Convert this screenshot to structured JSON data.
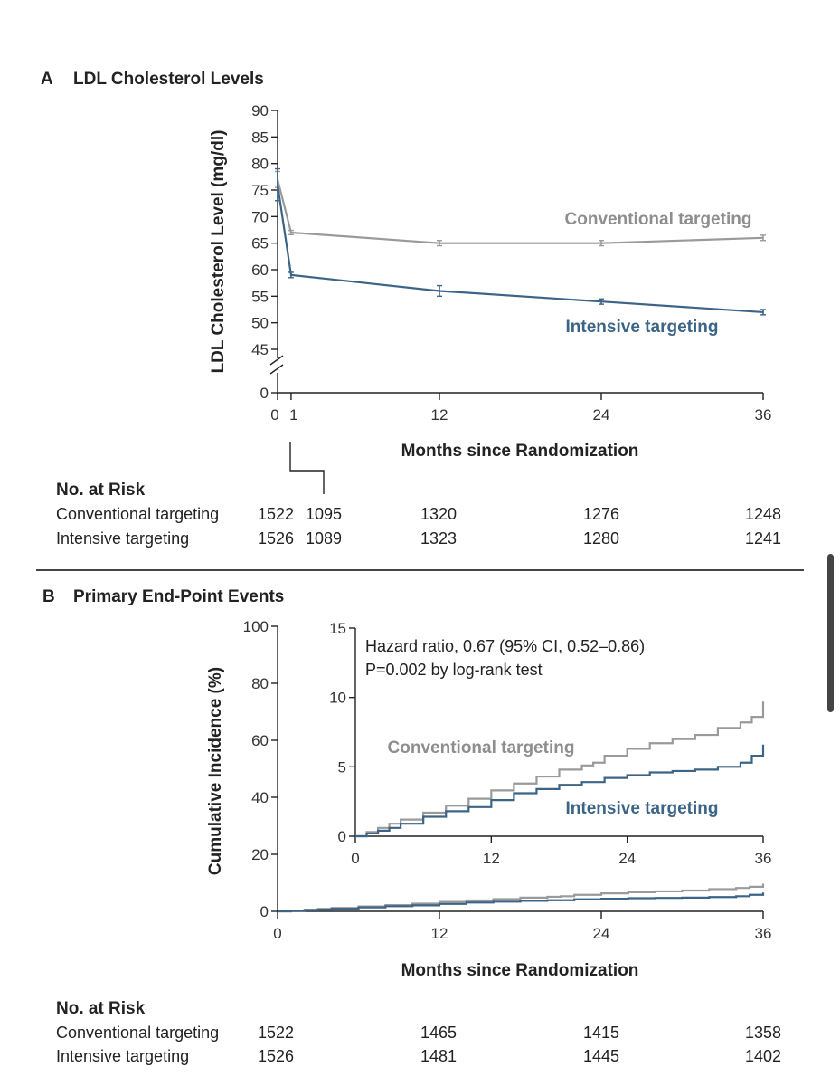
{
  "panel_a": {
    "letter": "A",
    "title": "LDL Cholesterol Levels",
    "ylabel": "LDL Cholesterol Level (mg/dl)",
    "xlabel": "Months since Randomization",
    "label_conventional": "Conventional targeting",
    "label_intensive": "Intensive targeting"
  },
  "risk_a": {
    "heading": "No. at Risk",
    "rows": [
      {
        "label": "Conventional targeting",
        "values": [
          "1522",
          "1095",
          "1320",
          "1276",
          "1248"
        ]
      },
      {
        "label": "Intensive targeting",
        "values": [
          "1526",
          "1089",
          "1323",
          "1280",
          "1241"
        ]
      }
    ]
  },
  "panel_b": {
    "letter": "B",
    "title": "Primary End-Point Events",
    "ylabel": "Cumulative Incidence (%)",
    "xlabel": "Months since Randomization",
    "hazard_line1": "Hazard ratio, 0.67 (95% CI, 0.52–0.86)",
    "hazard_line2": "P=0.002 by log-rank test",
    "label_conventional": "Conventional targeting",
    "label_intensive": "Intensive targeting"
  },
  "risk_b": {
    "heading": "No. at Risk",
    "rows": [
      {
        "label": "Conventional targeting",
        "values": [
          "1522",
          "1465",
          "1415",
          "1358"
        ]
      },
      {
        "label": "Intensive targeting",
        "values": [
          "1526",
          "1481",
          "1445",
          "1402"
        ]
      }
    ]
  },
  "colors": {
    "conventional": "#9a9a9a",
    "intensive": "#3b6486",
    "axis": "#222222"
  },
  "chart_data": [
    {
      "type": "line",
      "title": "LDL Cholesterol Levels",
      "xlabel": "Months since Randomization",
      "ylabel": "LDL Cholesterol Level (mg/dl)",
      "xlim": [
        0,
        36
      ],
      "ylim": [
        45,
        90
      ],
      "axis_break": true,
      "x_ticks": [
        0,
        1,
        12,
        24,
        36
      ],
      "x_tick_labels": [
        "0",
        "1",
        "12",
        "24",
        "36"
      ],
      "y_ticks": [
        0,
        45,
        50,
        55,
        60,
        65,
        70,
        75,
        80,
        85,
        90
      ],
      "y_tick_labels": [
        "0",
        "45",
        "50",
        "55",
        "60",
        "65",
        "70",
        "75",
        "80",
        "85",
        "90"
      ],
      "series": [
        {
          "name": "Conventional targeting",
          "x": [
            0,
            1,
            12,
            24,
            36
          ],
          "values": [
            77,
            67,
            65,
            65,
            66
          ],
          "err": [
            1.5,
            0.4,
            0.5,
            0.5,
            0.5
          ]
        },
        {
          "name": "Intensive targeting",
          "x": [
            0,
            1,
            12,
            24,
            36
          ],
          "values": [
            76,
            59,
            56,
            54,
            52
          ],
          "err": [
            3,
            0.5,
            1,
            0.5,
            0.5
          ]
        }
      ]
    },
    {
      "type": "line",
      "title": "Primary End-Point Events",
      "xlabel": "Months since Randomization",
      "ylabel": "Cumulative Incidence (%)",
      "xlim": [
        0,
        36
      ],
      "ylim": [
        0,
        100
      ],
      "x_ticks": [
        0,
        12,
        24,
        36
      ],
      "x_tick_labels": [
        "0",
        "12",
        "24",
        "36"
      ],
      "y_ticks": [
        0,
        20,
        40,
        60,
        80,
        100
      ],
      "y_tick_labels": [
        "0",
        "20",
        "40",
        "60",
        "80",
        "100"
      ],
      "series": [
        {
          "name": "Conventional targeting",
          "x": [
            0,
            1,
            2,
            3,
            4,
            6,
            8,
            10,
            12,
            14,
            16,
            18,
            20,
            21,
            22,
            24,
            26,
            28,
            30,
            32,
            34,
            35,
            36
          ],
          "values": [
            0,
            0.3,
            0.6,
            0.9,
            1.2,
            1.7,
            2.2,
            2.7,
            3.3,
            3.8,
            4.3,
            4.8,
            5.1,
            5.3,
            5.8,
            6.3,
            6.7,
            7.0,
            7.3,
            7.8,
            8.2,
            8.6,
            9.7
          ]
        },
        {
          "name": "Intensive targeting",
          "x": [
            0,
            1,
            2,
            3,
            4,
            6,
            8,
            10,
            12,
            14,
            16,
            18,
            20,
            22,
            24,
            26,
            28,
            30,
            32,
            34,
            35,
            36
          ],
          "values": [
            0,
            0.2,
            0.4,
            0.6,
            0.9,
            1.4,
            1.8,
            2.1,
            2.6,
            3.1,
            3.4,
            3.7,
            3.9,
            4.2,
            4.4,
            4.6,
            4.7,
            4.8,
            5.0,
            5.3,
            5.8,
            6.6
          ]
        }
      ]
    },
    {
      "type": "line",
      "title": "Primary End-Point Events (inset)",
      "xlim": [
        0,
        36
      ],
      "ylim": [
        0,
        15
      ],
      "x_ticks": [
        0,
        12,
        24,
        36
      ],
      "x_tick_labels": [
        "0",
        "12",
        "24",
        "36"
      ],
      "y_ticks": [
        0,
        5,
        10,
        15
      ],
      "y_tick_labels": [
        "0",
        "5",
        "10",
        "15"
      ],
      "series": [
        {
          "name": "Conventional targeting",
          "x": [
            0,
            1,
            2,
            3,
            4,
            6,
            8,
            10,
            12,
            14,
            16,
            18,
            20,
            21,
            22,
            24,
            26,
            28,
            30,
            32,
            34,
            35,
            36
          ],
          "values": [
            0,
            0.3,
            0.6,
            0.9,
            1.2,
            1.7,
            2.2,
            2.7,
            3.3,
            3.8,
            4.3,
            4.8,
            5.1,
            5.3,
            5.8,
            6.3,
            6.7,
            7.0,
            7.3,
            7.8,
            8.2,
            8.6,
            9.7
          ]
        },
        {
          "name": "Intensive targeting",
          "x": [
            0,
            1,
            2,
            3,
            4,
            6,
            8,
            10,
            12,
            14,
            16,
            18,
            20,
            22,
            24,
            26,
            28,
            30,
            32,
            34,
            35,
            36
          ],
          "values": [
            0,
            0.2,
            0.4,
            0.6,
            0.9,
            1.4,
            1.8,
            2.1,
            2.6,
            3.1,
            3.4,
            3.7,
            3.9,
            4.2,
            4.4,
            4.6,
            4.7,
            4.8,
            5.0,
            5.3,
            5.8,
            6.6
          ]
        }
      ],
      "annotations": [
        "Hazard ratio, 0.67 (95% CI, 0.52–0.86)",
        "P=0.002 by log-rank test"
      ]
    }
  ]
}
